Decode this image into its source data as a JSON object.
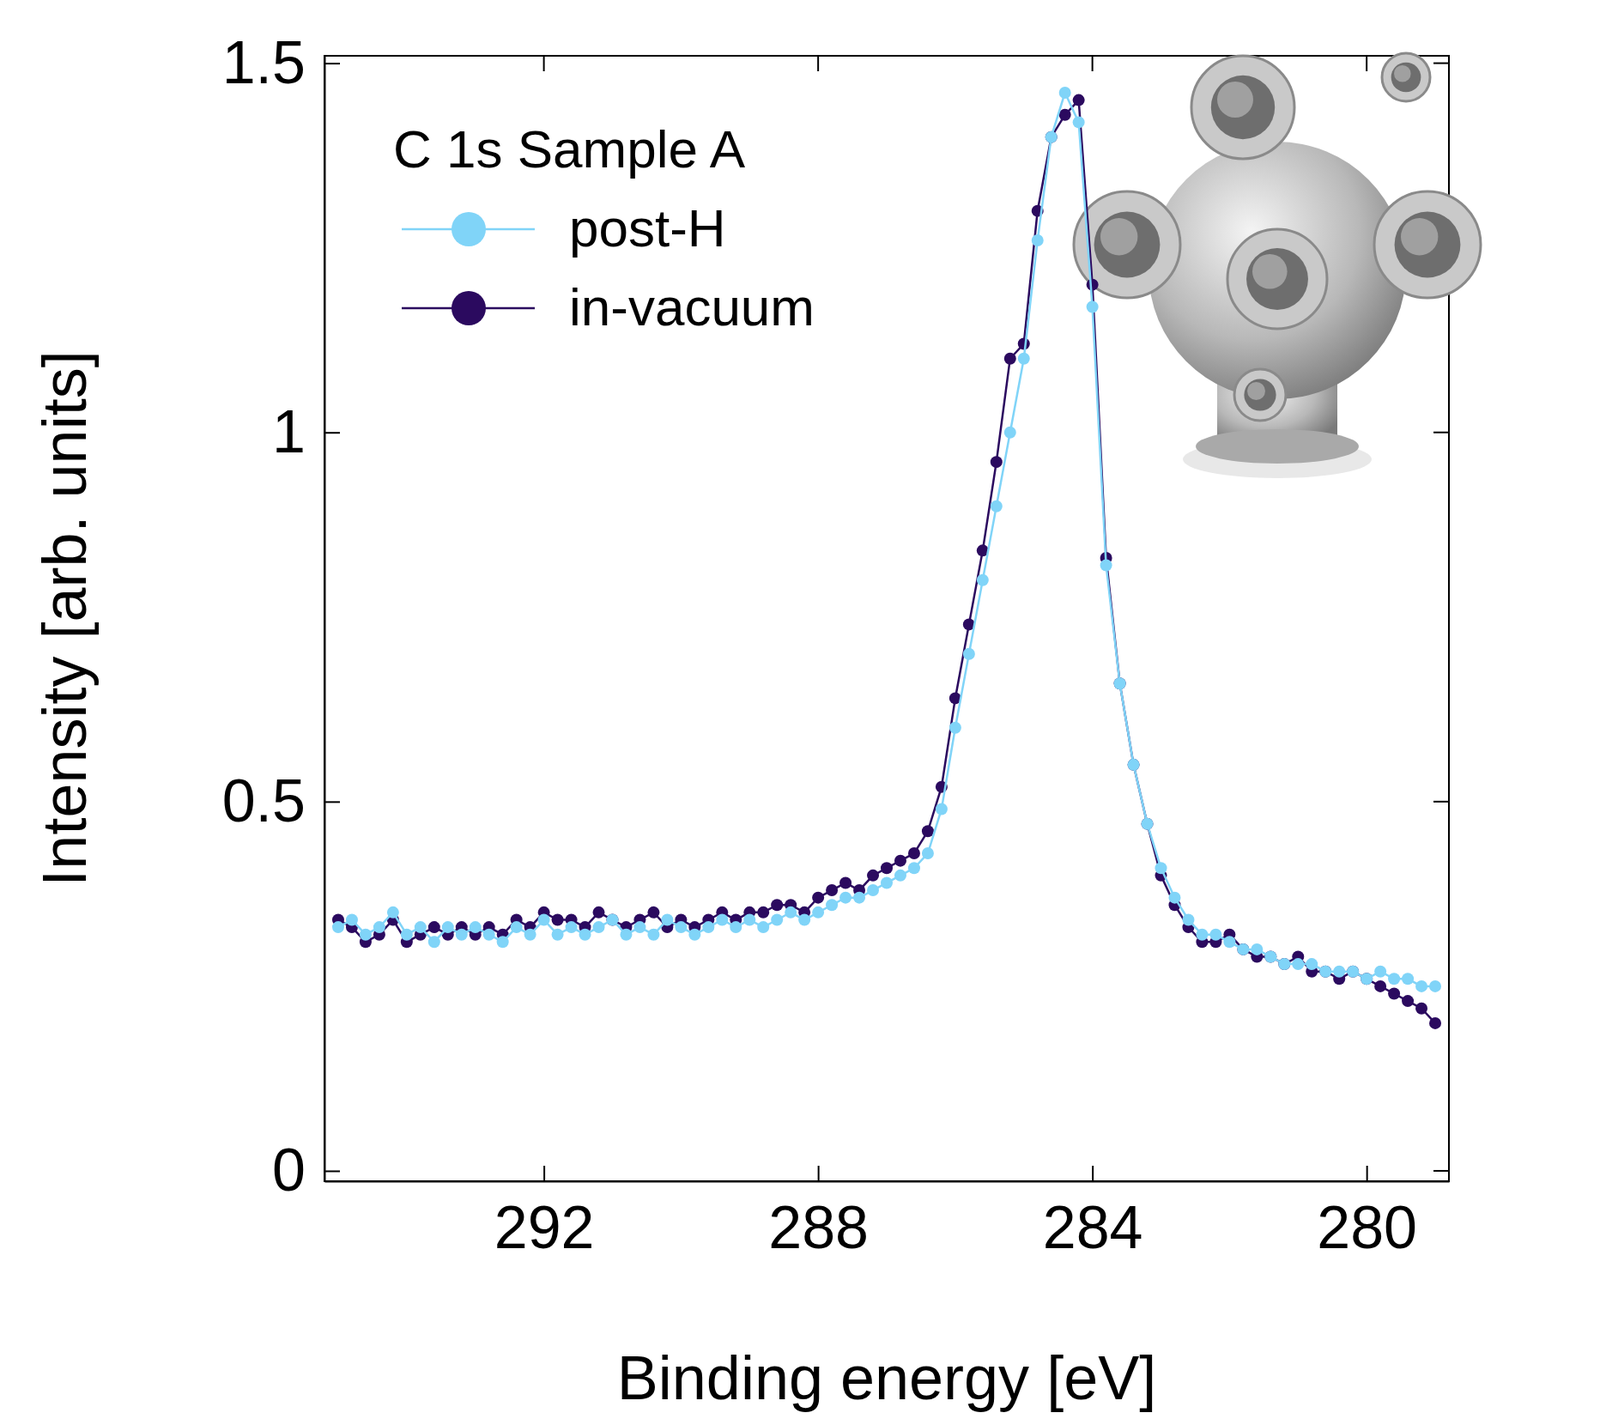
{
  "chart_data": {
    "type": "line",
    "marker": "circle",
    "title": "C 1s Sample A",
    "x_label": "Binding energy [eV]",
    "y_label": "Intensity [arb. units]",
    "xlim": [
      295.2,
      278.8
    ],
    "xticks": [
      292,
      288,
      284,
      280
    ],
    "ylim": [
      -0.014,
      1.51
    ],
    "yticks": [
      0,
      0.5,
      1,
      1.5
    ],
    "legend": "upper left",
    "grid": false,
    "x": [
      295.0,
      294.8,
      294.6,
      294.4,
      294.2,
      294.0,
      293.8,
      293.6,
      293.4,
      293.2,
      293.0,
      292.8,
      292.6,
      292.4,
      292.2,
      292.0,
      291.8,
      291.6,
      291.4,
      291.2,
      291.0,
      290.8,
      290.6,
      290.4,
      290.2,
      290.0,
      289.8,
      289.6,
      289.4,
      289.2,
      289.0,
      288.8,
      288.6,
      288.4,
      288.2,
      288.0,
      287.8,
      287.6,
      287.4,
      287.2,
      287.0,
      286.8,
      286.6,
      286.4,
      286.2,
      286.0,
      285.8,
      285.6,
      285.4,
      285.2,
      285.0,
      284.8,
      284.6,
      284.4,
      284.2,
      284.0,
      283.8,
      283.6,
      283.4,
      283.2,
      283.0,
      282.8,
      282.6,
      282.4,
      282.2,
      282.0,
      281.8,
      281.6,
      281.4,
      281.2,
      281.0,
      280.8,
      280.6,
      280.4,
      280.2,
      280.0,
      279.8,
      279.6,
      279.4,
      279.2,
      279.0
    ],
    "series": [
      {
        "name": "post-H",
        "color": "#80d4f8",
        "values": [
          0.33,
          0.34,
          0.32,
          0.33,
          0.35,
          0.32,
          0.33,
          0.31,
          0.33,
          0.32,
          0.33,
          0.32,
          0.31,
          0.33,
          0.32,
          0.34,
          0.32,
          0.33,
          0.32,
          0.33,
          0.34,
          0.32,
          0.33,
          0.32,
          0.34,
          0.33,
          0.32,
          0.33,
          0.34,
          0.33,
          0.34,
          0.33,
          0.34,
          0.35,
          0.34,
          0.35,
          0.36,
          0.37,
          0.37,
          0.38,
          0.39,
          0.4,
          0.41,
          0.43,
          0.49,
          0.6,
          0.7,
          0.8,
          0.9,
          1.0,
          1.1,
          1.26,
          1.4,
          1.46,
          1.42,
          1.17,
          0.82,
          0.66,
          0.55,
          0.47,
          0.41,
          0.37,
          0.34,
          0.32,
          0.32,
          0.31,
          0.3,
          0.3,
          0.29,
          0.28,
          0.28,
          0.28,
          0.27,
          0.27,
          0.27,
          0.26,
          0.27,
          0.26,
          0.26,
          0.25,
          0.25
        ]
      },
      {
        "name": "in-vacuum",
        "color": "#2b0a5f",
        "values": [
          0.34,
          0.33,
          0.31,
          0.32,
          0.34,
          0.31,
          0.32,
          0.33,
          0.32,
          0.33,
          0.32,
          0.33,
          0.32,
          0.34,
          0.33,
          0.35,
          0.34,
          0.34,
          0.33,
          0.35,
          0.34,
          0.33,
          0.34,
          0.35,
          0.33,
          0.34,
          0.33,
          0.34,
          0.35,
          0.34,
          0.35,
          0.35,
          0.36,
          0.36,
          0.35,
          0.37,
          0.38,
          0.39,
          0.38,
          0.4,
          0.41,
          0.42,
          0.43,
          0.46,
          0.52,
          0.64,
          0.74,
          0.84,
          0.96,
          1.1,
          1.12,
          1.3,
          1.4,
          1.43,
          1.45,
          1.2,
          0.83,
          0.66,
          0.55,
          0.47,
          0.4,
          0.36,
          0.33,
          0.31,
          0.31,
          0.32,
          0.3,
          0.29,
          0.29,
          0.28,
          0.29,
          0.27,
          0.27,
          0.26,
          0.27,
          0.26,
          0.25,
          0.24,
          0.23,
          0.22,
          0.2
        ]
      }
    ]
  }
}
